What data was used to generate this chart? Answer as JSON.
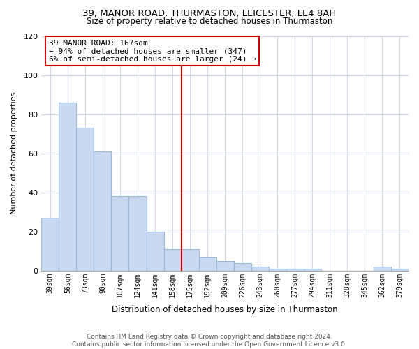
{
  "title": "39, MANOR ROAD, THURMASTON, LEICESTER, LE4 8AH",
  "subtitle": "Size of property relative to detached houses in Thurmaston",
  "xlabel": "Distribution of detached houses by size in Thurmaston",
  "ylabel": "Number of detached properties",
  "bar_labels": [
    "39sqm",
    "56sqm",
    "73sqm",
    "90sqm",
    "107sqm",
    "124sqm",
    "141sqm",
    "158sqm",
    "175sqm",
    "192sqm",
    "209sqm",
    "226sqm",
    "243sqm",
    "260sqm",
    "277sqm",
    "294sqm",
    "311sqm",
    "328sqm",
    "345sqm",
    "362sqm",
    "379sqm"
  ],
  "bar_values": [
    27,
    86,
    73,
    61,
    38,
    38,
    20,
    11,
    11,
    7,
    5,
    4,
    2,
    1,
    1,
    1,
    0,
    0,
    0,
    2,
    1
  ],
  "bar_color": "#c8d9f0",
  "bar_edge_color": "#9ab8d8",
  "vline_color": "#cc0000",
  "annotation_line1": "39 MANOR ROAD: 167sqm",
  "annotation_line2": "← 94% of detached houses are smaller (347)",
  "annotation_line3": "6% of semi-detached houses are larger (24) →",
  "ylim": [
    0,
    120
  ],
  "yticks": [
    0,
    20,
    40,
    60,
    80,
    100,
    120
  ],
  "footer_line1": "Contains HM Land Registry data © Crown copyright and database right 2024.",
  "footer_line2": "Contains public sector information licensed under the Open Government Licence v3.0.",
  "bg_color": "#ffffff",
  "grid_color": "#d0d8e8"
}
